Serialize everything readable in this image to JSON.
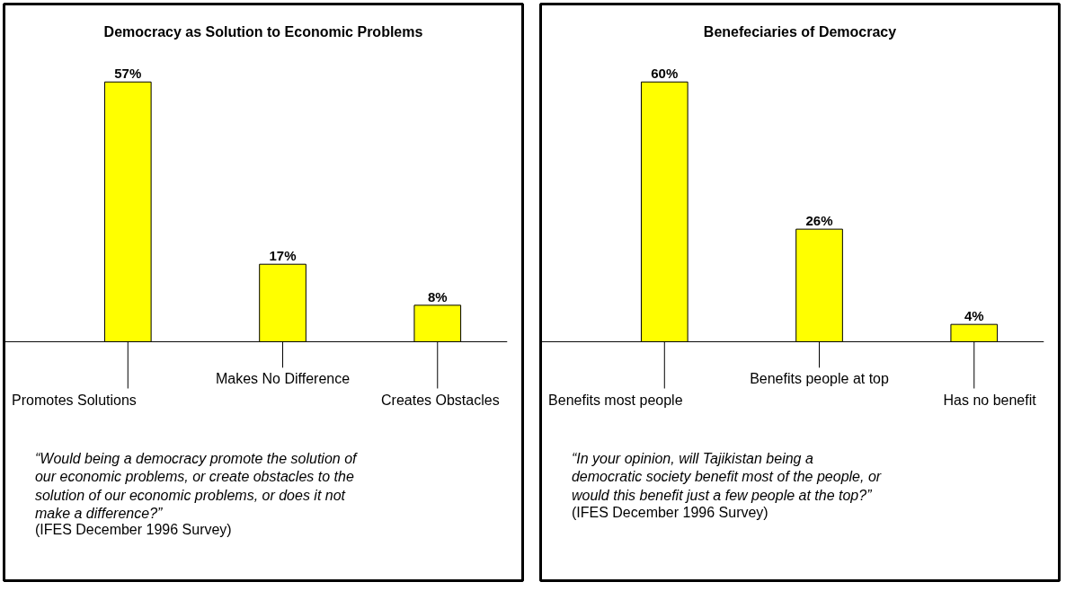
{
  "chart_data": [
    {
      "type": "bar",
      "title": "Democracy as Solution to Economic Problems",
      "categories": [
        "Promotes Solutions",
        "Makes No Difference",
        "Creates Obstacles"
      ],
      "values": [
        57,
        17,
        8
      ],
      "value_labels": [
        "57%",
        "17%",
        "8%"
      ],
      "color": "#ffff00",
      "annotations": [
        "“Would being a democracy promote the solution of our economic problems, or create obstacles to the solution of our economic problems, or does it not make a difference?”",
        "(IFES December 1996 Survey)"
      ]
    },
    {
      "type": "bar",
      "title": "Benefeciaries of Democracy",
      "categories": [
        "Benefits most people",
        "Benefits people at top",
        "Has no benefit"
      ],
      "values": [
        60,
        26,
        4
      ],
      "value_labels": [
        "60%",
        "26%",
        "4%"
      ],
      "color": "#ffff00",
      "annotations": [
        "“In your opinion, will Tajikistan being a democratic society benefit most of the people, or would this benefit just a few people at the top?”",
        "(IFES December 1996 Survey)"
      ]
    }
  ]
}
